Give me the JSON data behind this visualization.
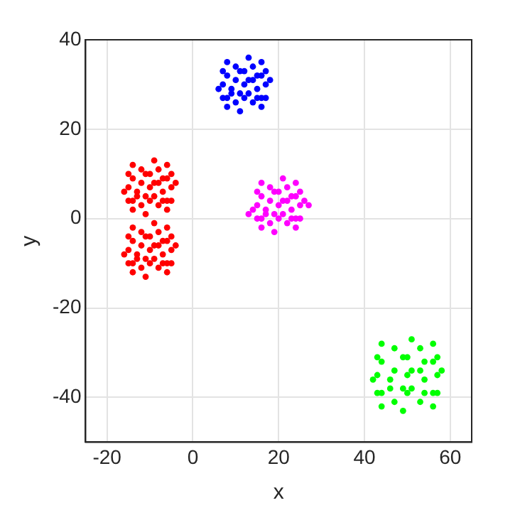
{
  "chart_data": {
    "type": "scatter",
    "xlabel": "x",
    "ylabel": "y",
    "xlim": [
      -25,
      65
    ],
    "xticks": [
      -20,
      0,
      20,
      40,
      60
    ],
    "ylim": [
      -50,
      40
    ],
    "yticks": [
      -40,
      -20,
      0,
      20,
      40
    ],
    "grid": true,
    "legend": false,
    "marker": "circle",
    "series": [
      {
        "color": "#0000ff",
        "x": [
          12,
          14,
          10,
          13,
          11,
          15,
          9,
          12,
          12,
          16,
          8,
          16,
          8,
          14,
          10,
          14,
          10,
          17,
          7,
          18,
          6,
          13,
          11,
          16,
          8,
          16,
          8,
          17,
          7,
          17,
          7,
          15,
          9,
          13,
          11,
          15
        ],
        "values": [
          30,
          31,
          31,
          28,
          28,
          29,
          29,
          33,
          27,
          32,
          32,
          27,
          27,
          34,
          34,
          26,
          26,
          30,
          30,
          31,
          29,
          36,
          24,
          35,
          35,
          25,
          25,
          33,
          33,
          27,
          27,
          32,
          28,
          31,
          33,
          27
        ]
      },
      {
        "color": "#ff0000",
        "x": [
          -10,
          -8,
          -12,
          -9,
          -11,
          -7,
          -13,
          -10,
          -10,
          -6,
          -14,
          -6,
          -14,
          -8,
          -12,
          -8,
          -12,
          -5,
          -15,
          -4,
          -16,
          -9,
          -11,
          -6,
          -14,
          -6,
          -14,
          -5,
          -15,
          -5,
          -15,
          -7,
          -13,
          -9,
          -11,
          -7,
          -10,
          -8,
          -12,
          -9,
          -11,
          -7,
          -13,
          -10,
          -10,
          -6,
          -14,
          -6,
          -14,
          -8,
          -12,
          -8,
          -12,
          -5,
          -15,
          -4,
          -16,
          -9,
          -11,
          -6,
          -14,
          -6,
          -14,
          -5,
          -15,
          -5,
          -15,
          -7,
          -13,
          -9,
          -11,
          -7
        ],
        "values": [
          7,
          8,
          8,
          5,
          5,
          6,
          6,
          10,
          4,
          9,
          9,
          4,
          4,
          11,
          11,
          3,
          3,
          7,
          7,
          8,
          6,
          13,
          1,
          12,
          12,
          2,
          2,
          10,
          10,
          4,
          4,
          9,
          5,
          8,
          10,
          4,
          -7,
          -6,
          -6,
          -9,
          -9,
          -8,
          -8,
          -4,
          -10,
          -5,
          -5,
          -10,
          -10,
          -3,
          -3,
          -11,
          -11,
          -7,
          -7,
          -6,
          -8,
          -1,
          -13,
          -2,
          -2,
          -12,
          -12,
          -4,
          -4,
          -10,
          -10,
          -5,
          -9,
          -6,
          -4,
          -10
        ]
      },
      {
        "color": "#ff00ff",
        "x": [
          20,
          22,
          18,
          21,
          19,
          23,
          17,
          20,
          20,
          24,
          16,
          24,
          16,
          22,
          18,
          22,
          18,
          25,
          15,
          26,
          14,
          21,
          19,
          24,
          16,
          24,
          16,
          25,
          15,
          25,
          15,
          23,
          17,
          21,
          19,
          23,
          13,
          27
        ],
        "values": [
          3,
          4,
          4,
          1,
          1,
          2,
          2,
          6,
          0,
          5,
          5,
          0,
          0,
          7,
          7,
          -1,
          -1,
          3,
          3,
          4,
          2,
          9,
          -3,
          8,
          8,
          -2,
          -2,
          6,
          6,
          0,
          0,
          5,
          1,
          4,
          6,
          0,
          1,
          3
        ]
      },
      {
        "color": "#00ff00",
        "x": [
          50,
          53,
          47,
          51,
          49,
          54,
          46,
          50,
          50,
          56,
          44,
          56,
          44,
          53,
          47,
          53,
          47,
          57,
          43,
          58,
          42,
          51,
          49,
          56,
          44,
          56,
          44,
          57,
          43,
          57,
          43,
          54,
          46,
          51,
          49,
          54
        ],
        "values": [
          -35,
          -34,
          -34,
          -38,
          -38,
          -36,
          -36,
          -31,
          -39,
          -32,
          -32,
          -39,
          -39,
          -29,
          -29,
          -41,
          -41,
          -35,
          -35,
          -34,
          -36,
          -27,
          -43,
          -28,
          -28,
          -42,
          -42,
          -31,
          -31,
          -39,
          -39,
          -32,
          -38,
          -34,
          -31,
          -39
        ]
      }
    ]
  }
}
